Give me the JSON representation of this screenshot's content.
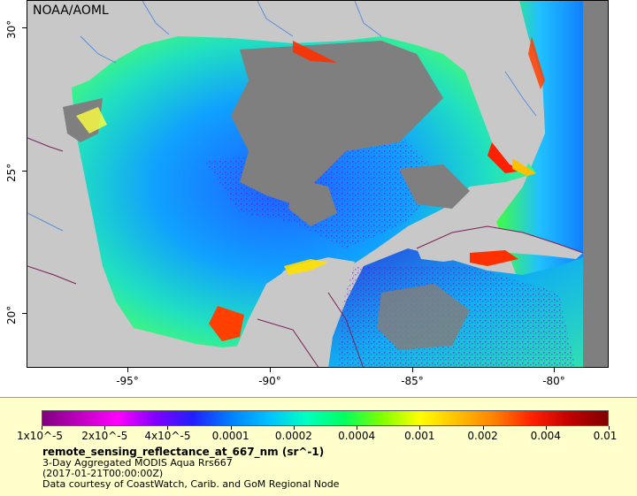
{
  "map": {
    "credit": "NOAA/AOML",
    "x_ticks": [
      "-95°",
      "-90°",
      "-85°",
      "-80°"
    ],
    "y_ticks": [
      "30°",
      "25°",
      "20°"
    ],
    "land_color": "#c8c8c8",
    "nodata_color": "#7f7f7f",
    "river_color": "#5a8fd8",
    "border_color": "#7a1f5a"
  },
  "legend": {
    "colorbar_labels": [
      "1x10^-5",
      "2x10^-5",
      "4x10^-5",
      "0.0001",
      "0.0002",
      "0.0004",
      "0.001",
      "0.002",
      "0.004",
      "0.01"
    ],
    "colorbar_colors": [
      "#7f007f",
      "#c000c0",
      "#ff00ff",
      "#8000ff",
      "#2020ff",
      "#0080ff",
      "#00c0ff",
      "#00ffc0",
      "#00ff60",
      "#80ff00",
      "#ffff00",
      "#ffc000",
      "#ff8000",
      "#ff2000",
      "#c00000",
      "#800000"
    ],
    "variable": "remote_sensing_reflectance_at_667_nm (sr^-1)",
    "description": "3-Day Aggregated MODIS Aqua Rrs667",
    "date": "(2017-01-21T00:00:00Z)",
    "courtesy": "Data courtesy of CoastWatch, Carib. and GoM Regional Node"
  }
}
